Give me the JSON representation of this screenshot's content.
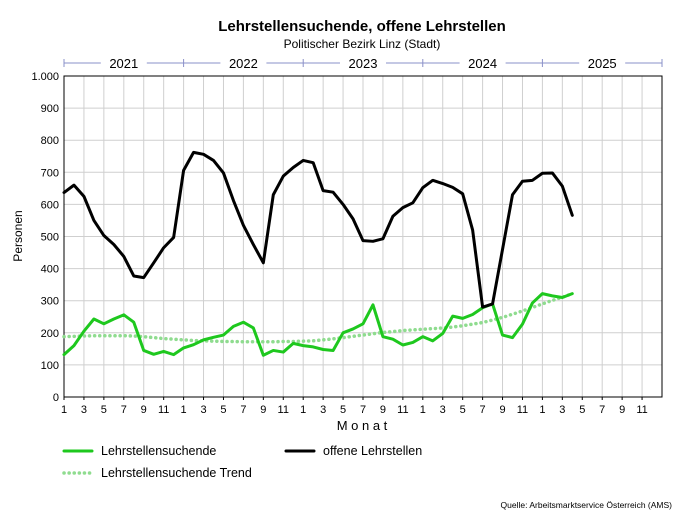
{
  "chart_data": {
    "type": "line",
    "title": "Lehrstellensuchende, offene Lehrstellen",
    "subtitle": "Politischer Bezirk Linz (Stadt)",
    "xlabel": "M o n a t",
    "ylabel": "Personen",
    "source": "Quelle: Arbeitsmarktservice Österreich (AMS)",
    "ylim": [
      0,
      1000
    ],
    "y_ticks": [
      0,
      100,
      200,
      300,
      400,
      500,
      600,
      700,
      800,
      900,
      1000
    ],
    "y_tick_labels": [
      "0",
      "100",
      "200",
      "300",
      "400",
      "500",
      "600",
      "700",
      "800",
      "900",
      "1.000"
    ],
    "x_tick_labels": [
      "1",
      "3",
      "5",
      "7",
      "9",
      "11",
      "1",
      "3",
      "5",
      "7",
      "9",
      "11",
      "1",
      "3",
      "5",
      "7",
      "9",
      "11",
      "1",
      "3",
      "5",
      "7",
      "9",
      "11",
      "1",
      "3",
      "5",
      "7",
      "9",
      "11"
    ],
    "years": [
      "2021",
      "2022",
      "2023",
      "2024",
      "2025"
    ],
    "grid": true,
    "legend_position": "bottom",
    "series": [
      {
        "name": "Lehrstellensuchende",
        "color": "#1ec81e",
        "style": "solid",
        "values": [
          132,
          160,
          205,
          243,
          228,
          243,
          256,
          233,
          145,
          133,
          142,
          132,
          153,
          163,
          178,
          186,
          193,
          220,
          233,
          215,
          130,
          145,
          140,
          167,
          160,
          156,
          148,
          145,
          200,
          212,
          228,
          287,
          188,
          180,
          162,
          170,
          188,
          175,
          198,
          252,
          245,
          257,
          278,
          290,
          193,
          185,
          227,
          293,
          322,
          315,
          310,
          322
        ]
      },
      {
        "name": "offene Lehrstellen",
        "color": "#000000",
        "style": "solid",
        "values": [
          637,
          660,
          625,
          550,
          503,
          475,
          438,
          377,
          372,
          418,
          465,
          497,
          706,
          762,
          756,
          737,
          698,
          612,
          535,
          475,
          418,
          630,
          688,
          715,
          737,
          730,
          643,
          638,
          600,
          555,
          487,
          485,
          493,
          563,
          590,
          605,
          652,
          675,
          665,
          653,
          633,
          520,
          280,
          290,
          460,
          630,
          672,
          675,
          697,
          698,
          657,
          566
        ]
      },
      {
        "name": "Lehrstellensuchende Trend",
        "color": "#8fdc8f",
        "style": "dotted",
        "values": [
          188,
          189,
          190,
          191,
          191,
          191,
          191,
          190,
          188,
          185,
          182,
          180,
          178,
          176,
          175,
          174,
          173,
          173,
          172,
          172,
          172,
          172,
          173,
          173,
          174,
          175,
          178,
          181,
          185,
          189,
          193,
          197,
          201,
          204,
          207,
          209,
          211,
          213,
          215,
          218,
          222,
          227,
          232,
          240,
          248,
          258,
          268,
          279,
          290,
          301,
          311,
          322
        ]
      }
    ]
  }
}
